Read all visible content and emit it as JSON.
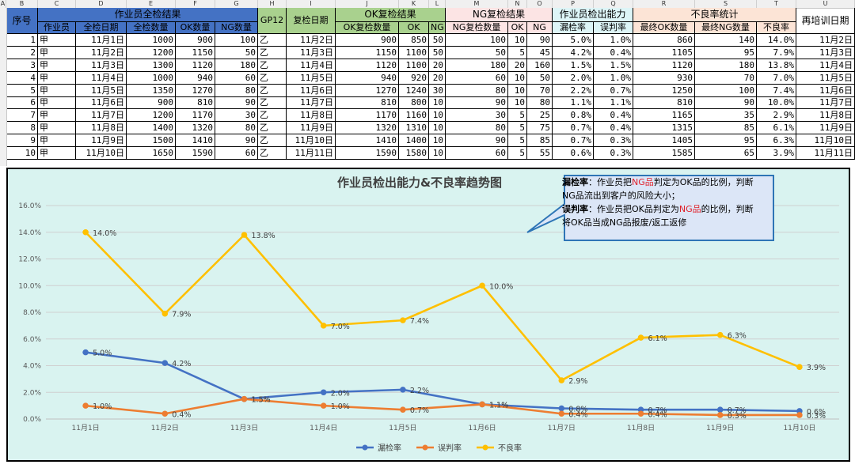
{
  "columns": [
    "A",
    "B",
    "C",
    "D",
    "E",
    "F",
    "G",
    "H",
    "I",
    "J",
    "K",
    "L",
    "M",
    "N",
    "O",
    "P",
    "Q",
    "R",
    "S",
    "T",
    "U"
  ],
  "headers": {
    "seq": "序号",
    "group_full": "作业员全检结果",
    "gp12": "GP12",
    "recheck_date": "复检日期",
    "group_ok": "OK复检结果",
    "group_ng": "NG复检结果",
    "group_ability": "作业员检出能力",
    "group_defect": "不良率统计",
    "retrain": "再培训日期",
    "operator": "作业员",
    "full_date": "全检日期",
    "full_qty": "全检数量",
    "ok_qty": "OK数量",
    "ng_qty": "NG数量",
    "ok_recheck_qty": "OK复检数量",
    "ok": "OK",
    "ng": "NG",
    "ng_recheck_qty": "NG复检数量",
    "miss_rate": "漏检率",
    "false_rate": "误判率",
    "final_ok": "最终OK数量",
    "final_ng": "最终NG数量",
    "defect_rate": "不良率"
  },
  "rows": [
    {
      "seq": "1",
      "op": "甲",
      "d1": "11月1日",
      "full": "1000",
      "ok": "900",
      "ng": "100",
      "gp": "乙",
      "d2": "11月2日",
      "okr": "900",
      "okok": "850",
      "okng": "50",
      "ngr": "100",
      "ngok": "10",
      "ngng": "90",
      "miss": "5.0%",
      "false": "1.0%",
      "fok": "860",
      "fng": "140",
      "def": "14.0%",
      "d3": "11月2日"
    },
    {
      "seq": "2",
      "op": "甲",
      "d1": "11月2日",
      "full": "1200",
      "ok": "1150",
      "ng": "50",
      "gp": "乙",
      "d2": "11月3日",
      "okr": "1150",
      "okok": "1100",
      "okng": "50",
      "ngr": "50",
      "ngok": "5",
      "ngng": "45",
      "miss": "4.2%",
      "false": "0.4%",
      "fok": "1105",
      "fng": "95",
      "def": "7.9%",
      "d3": "11月3日"
    },
    {
      "seq": "3",
      "op": "甲",
      "d1": "11月3日",
      "full": "1300",
      "ok": "1120",
      "ng": "180",
      "gp": "乙",
      "d2": "11月4日",
      "okr": "1120",
      "okok": "1100",
      "okng": "20",
      "ngr": "180",
      "ngok": "20",
      "ngng": "160",
      "miss": "1.5%",
      "false": "1.5%",
      "fok": "1120",
      "fng": "180",
      "def": "13.8%",
      "d3": "11月4日"
    },
    {
      "seq": "4",
      "op": "甲",
      "d1": "11月4日",
      "full": "1000",
      "ok": "940",
      "ng": "60",
      "gp": "乙",
      "d2": "11月5日",
      "okr": "940",
      "okok": "920",
      "okng": "20",
      "ngr": "60",
      "ngok": "10",
      "ngng": "50",
      "miss": "2.0%",
      "false": "1.0%",
      "fok": "930",
      "fng": "70",
      "def": "7.0%",
      "d3": "11月5日"
    },
    {
      "seq": "5",
      "op": "甲",
      "d1": "11月5日",
      "full": "1350",
      "ok": "1270",
      "ng": "80",
      "gp": "乙",
      "d2": "11月6日",
      "okr": "1270",
      "okok": "1240",
      "okng": "30",
      "ngr": "80",
      "ngok": "10",
      "ngng": "70",
      "miss": "2.2%",
      "false": "0.7%",
      "fok": "1250",
      "fng": "100",
      "def": "7.4%",
      "d3": "11月6日"
    },
    {
      "seq": "6",
      "op": "甲",
      "d1": "11月6日",
      "full": "900",
      "ok": "810",
      "ng": "90",
      "gp": "乙",
      "d2": "11月7日",
      "okr": "810",
      "okok": "800",
      "okng": "10",
      "ngr": "90",
      "ngok": "10",
      "ngng": "80",
      "miss": "1.1%",
      "false": "1.1%",
      "fok": "810",
      "fng": "90",
      "def": "10.0%",
      "d3": "11月7日"
    },
    {
      "seq": "7",
      "op": "甲",
      "d1": "11月7日",
      "full": "1200",
      "ok": "1170",
      "ng": "30",
      "gp": "乙",
      "d2": "11月8日",
      "okr": "1170",
      "okok": "1160",
      "okng": "10",
      "ngr": "30",
      "ngok": "5",
      "ngng": "25",
      "miss": "0.8%",
      "false": "0.4%",
      "fok": "1165",
      "fng": "35",
      "def": "2.9%",
      "d3": "11月8日"
    },
    {
      "seq": "8",
      "op": "甲",
      "d1": "11月8日",
      "full": "1400",
      "ok": "1320",
      "ng": "80",
      "gp": "乙",
      "d2": "11月9日",
      "okr": "1320",
      "okok": "1310",
      "okng": "10",
      "ngr": "80",
      "ngok": "5",
      "ngng": "75",
      "miss": "0.7%",
      "false": "0.4%",
      "fok": "1315",
      "fng": "85",
      "def": "6.1%",
      "d3": "11月9日"
    },
    {
      "seq": "9",
      "op": "甲",
      "d1": "11月9日",
      "full": "1500",
      "ok": "1410",
      "ng": "90",
      "gp": "乙",
      "d2": "11月10日",
      "okr": "1410",
      "okok": "1400",
      "okng": "10",
      "ngr": "90",
      "ngok": "5",
      "ngng": "85",
      "miss": "0.7%",
      "false": "0.3%",
      "fok": "1405",
      "fng": "95",
      "def": "6.3%",
      "d3": "11月10日"
    },
    {
      "seq": "10",
      "op": "甲",
      "d1": "11月10日",
      "full": "1650",
      "ok": "1590",
      "ng": "60",
      "gp": "乙",
      "d2": "11月11日",
      "okr": "1590",
      "okok": "1580",
      "okng": "10",
      "ngr": "60",
      "ngok": "5",
      "ngng": "55",
      "miss": "0.6%",
      "false": "0.3%",
      "fok": "1585",
      "fng": "65",
      "def": "3.9%",
      "d3": "11月11日"
    }
  ],
  "colors": {
    "hdr_blue": "#4472c4",
    "hdr_green": "#a9d18e",
    "hdr_pink": "#fce4e4",
    "hdr_cyan": "#ddf5f7",
    "hdr_peach": "#fce4d6",
    "miss_line": "#4472c4",
    "false_line": "#ed7d31",
    "defect_line": "#ffc000",
    "callout_bg": "#dce6f7",
    "callout_border": "#2e75b6"
  },
  "callout": {
    "miss_title": "漏检率",
    "miss_text_a": "：作业员把",
    "ng_word": "NG品",
    "miss_text_b": "判定为OK品的比例，判断NG品流出到客户的风险大小；",
    "false_title": "误判率",
    "false_text_a": "：作业员把OK品判定为",
    "false_text_b": "的比例，判断将OK品当成NG品报废/返工返修"
  },
  "chart_data": {
    "type": "line",
    "title": "作业员检出能力&不良率趋势图",
    "categories": [
      "11月1日",
      "11月2日",
      "11月3日",
      "11月4日",
      "11月5日",
      "11月6日",
      "11月7日",
      "11月8日",
      "11月9日",
      "11月10日"
    ],
    "ylim": [
      0,
      16
    ],
    "y_ticks": [
      "0.0%",
      "2.0%",
      "4.0%",
      "6.0%",
      "8.0%",
      "10.0%",
      "12.0%",
      "14.0%",
      "16.0%"
    ],
    "grid": true,
    "legend_position": "bottom",
    "series": [
      {
        "name": "漏检率",
        "color": "#4472c4",
        "values": [
          5.0,
          4.2,
          1.5,
          2.0,
          2.2,
          1.1,
          0.8,
          0.7,
          0.7,
          0.6
        ],
        "labels": [
          "5.0%",
          "4.2%",
          "1.5%",
          "2.0%",
          "2.2%",
          "1.1%",
          "0.8%",
          "0.7%",
          "0.7%",
          "0.6%"
        ]
      },
      {
        "name": "误判率",
        "color": "#ed7d31",
        "values": [
          1.0,
          0.4,
          1.5,
          1.0,
          0.7,
          1.1,
          0.4,
          0.4,
          0.3,
          0.3
        ],
        "labels": [
          "1.0%",
          "0.4%",
          "1.5%",
          "1.0%",
          "0.7%",
          "1.1%",
          "0.4%",
          "0.4%",
          "0.3%",
          "0.3%"
        ]
      },
      {
        "name": "不良率",
        "color": "#ffc000",
        "values": [
          14.0,
          7.9,
          13.8,
          7.0,
          7.4,
          10.0,
          2.9,
          6.1,
          6.3,
          3.9
        ],
        "labels": [
          "14.0%",
          "7.9%",
          "13.8%",
          "7.0%",
          "7.4%",
          "10.0%",
          "2.9%",
          "6.1%",
          "6.3%",
          "3.9%"
        ]
      }
    ]
  }
}
